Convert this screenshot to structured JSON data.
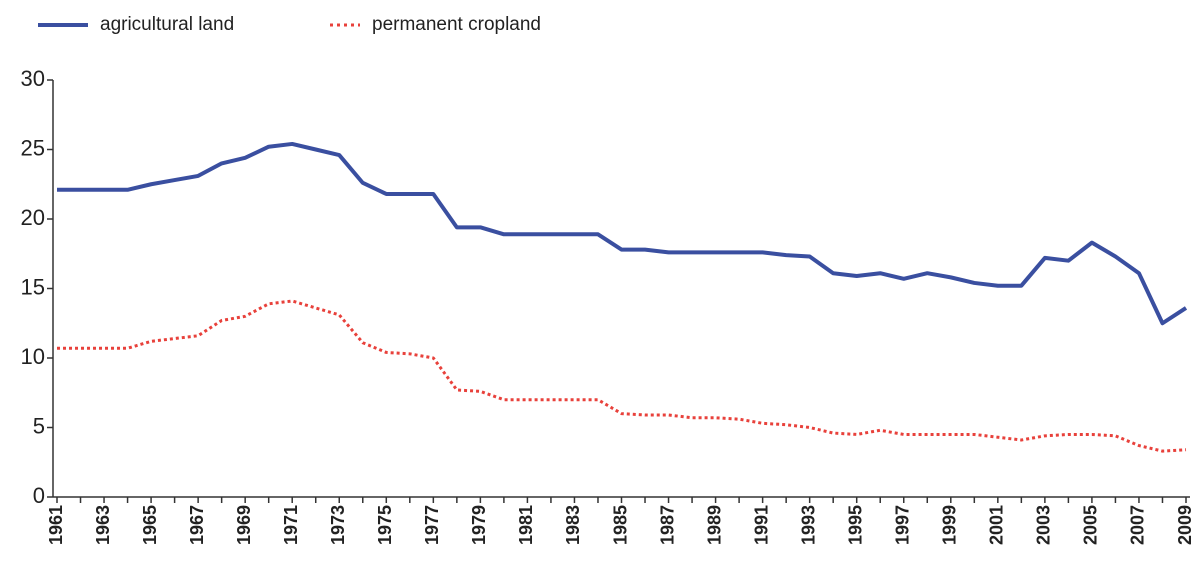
{
  "chart_data": {
    "type": "line",
    "categories": [
      "1961",
      null,
      "1963",
      null,
      "1965",
      null,
      "1967",
      null,
      "1969",
      null,
      "1971",
      null,
      "1973",
      null,
      "1975",
      null,
      "1977",
      null,
      "1979",
      null,
      "1981",
      null,
      "1983",
      null,
      "1985",
      null,
      "1987",
      null,
      "1989",
      null,
      "1991",
      null,
      "1993",
      null,
      "1995",
      null,
      "1997",
      null,
      "1999",
      null,
      "2001",
      null,
      "2003",
      null,
      "2005",
      null,
      "2007",
      null,
      "2009"
    ],
    "series": [
      {
        "name": "agricultural land",
        "color": "#3a4fa0",
        "style": "solid",
        "values": [
          22.1,
          22.1,
          22.1,
          22.1,
          22.5,
          22.8,
          23.1,
          24.0,
          24.4,
          25.2,
          25.4,
          25.0,
          24.6,
          22.6,
          21.8,
          21.8,
          21.8,
          19.4,
          19.4,
          18.9,
          18.9,
          18.9,
          18.9,
          18.9,
          17.8,
          17.8,
          17.6,
          17.6,
          17.6,
          17.6,
          17.6,
          17.4,
          17.3,
          16.1,
          15.9,
          16.1,
          15.7,
          16.1,
          15.8,
          15.4,
          15.2,
          15.2,
          17.2,
          17.0,
          18.3,
          17.3,
          16.1,
          12.5,
          13.6
        ]
      },
      {
        "name": "permanent cropland",
        "color": "#e8413b",
        "style": "dotted",
        "values": [
          10.7,
          10.7,
          10.7,
          10.7,
          11.2,
          11.4,
          11.6,
          12.7,
          13.0,
          13.9,
          14.1,
          13.6,
          13.1,
          11.1,
          10.4,
          10.3,
          10.0,
          7.7,
          7.6,
          7.0,
          7.0,
          7.0,
          7.0,
          7.0,
          6.0,
          5.9,
          5.9,
          5.7,
          5.7,
          5.6,
          5.3,
          5.2,
          5.0,
          4.6,
          4.5,
          4.8,
          4.5,
          4.5,
          4.5,
          4.5,
          4.3,
          4.1,
          4.4,
          4.5,
          4.5,
          4.4,
          3.7,
          3.3,
          3.4
        ]
      }
    ],
    "ylim": [
      0,
      30
    ],
    "yticks": [
      0,
      5,
      10,
      15,
      20,
      25,
      30
    ],
    "grid": false,
    "legend": "top-left"
  }
}
